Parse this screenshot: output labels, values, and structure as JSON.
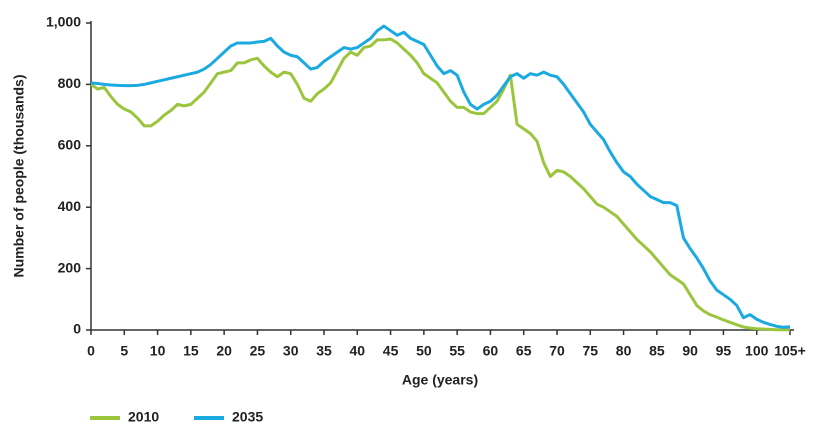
{
  "chart_data": {
    "type": "line",
    "y_label": "Number of people (thousands)",
    "x_label": "Age (years)",
    "x": [
      0,
      1,
      2,
      3,
      4,
      5,
      6,
      7,
      8,
      9,
      10,
      11,
      12,
      13,
      14,
      15,
      16,
      17,
      18,
      19,
      20,
      21,
      22,
      23,
      24,
      25,
      26,
      27,
      28,
      29,
      30,
      31,
      32,
      33,
      34,
      35,
      36,
      37,
      38,
      39,
      40,
      41,
      42,
      43,
      44,
      45,
      46,
      47,
      48,
      49,
      50,
      51,
      52,
      53,
      54,
      55,
      56,
      57,
      58,
      59,
      60,
      61,
      62,
      63,
      64,
      65,
      66,
      67,
      68,
      69,
      70,
      71,
      72,
      73,
      74,
      75,
      76,
      77,
      78,
      79,
      80,
      81,
      82,
      83,
      84,
      85,
      86,
      87,
      88,
      89,
      90,
      91,
      92,
      93,
      94,
      95,
      96,
      97,
      98,
      99,
      100,
      101,
      102,
      103,
      104,
      105
    ],
    "series": [
      {
        "name": "2010",
        "color": "#9bc53d",
        "values": [
          800,
          785,
          790,
          760,
          735,
          720,
          710,
          690,
          665,
          665,
          680,
          700,
          715,
          735,
          730,
          735,
          755,
          775,
          805,
          835,
          840,
          845,
          870,
          870,
          880,
          885,
          860,
          840,
          825,
          840,
          835,
          800,
          755,
          745,
          770,
          785,
          805,
          845,
          885,
          905,
          895,
          920,
          925,
          945,
          945,
          948,
          935,
          915,
          895,
          870,
          835,
          820,
          805,
          775,
          745,
          725,
          725,
          710,
          705,
          705,
          725,
          745,
          785,
          830,
          670,
          655,
          640,
          615,
          545,
          500,
          520,
          515,
          500,
          480,
          460,
          435,
          410,
          400,
          385,
          370,
          345,
          320,
          295,
          275,
          255,
          230,
          205,
          180,
          165,
          150,
          115,
          80,
          62,
          50,
          42,
          33,
          25,
          17,
          10,
          6,
          4,
          3,
          2,
          1,
          1,
          1
        ]
      },
      {
        "name": "2035",
        "color": "#1ba9e1",
        "values": [
          805,
          803,
          800,
          798,
          797,
          796,
          796,
          797,
          800,
          805,
          810,
          815,
          820,
          825,
          830,
          835,
          840,
          850,
          865,
          885,
          905,
          925,
          935,
          935,
          935,
          938,
          940,
          950,
          925,
          905,
          895,
          890,
          870,
          850,
          855,
          875,
          890,
          905,
          920,
          915,
          920,
          935,
          950,
          975,
          990,
          975,
          960,
          970,
          950,
          940,
          930,
          895,
          860,
          835,
          845,
          830,
          775,
          735,
          720,
          735,
          745,
          765,
          795,
          825,
          835,
          820,
          835,
          830,
          840,
          830,
          825,
          800,
          770,
          740,
          710,
          670,
          645,
          620,
          580,
          545,
          515,
          500,
          475,
          455,
          435,
          425,
          415,
          415,
          405,
          300,
          265,
          235,
          200,
          160,
          130,
          115,
          100,
          80,
          40,
          50,
          35,
          25,
          18,
          12,
          9,
          10
        ]
      }
    ],
    "xlim": [
      0,
      105
    ],
    "xticks": [
      0,
      5,
      10,
      15,
      20,
      25,
      30,
      35,
      40,
      45,
      50,
      55,
      60,
      65,
      70,
      75,
      80,
      85,
      90,
      95,
      100,
      {
        "value": 105,
        "label": "105+"
      }
    ],
    "ylim": [
      0,
      1000
    ],
    "yticks": [
      0,
      200,
      400,
      600,
      800,
      {
        "value": 1000,
        "label": "1,000"
      }
    ],
    "legend": "bottom-left"
  }
}
